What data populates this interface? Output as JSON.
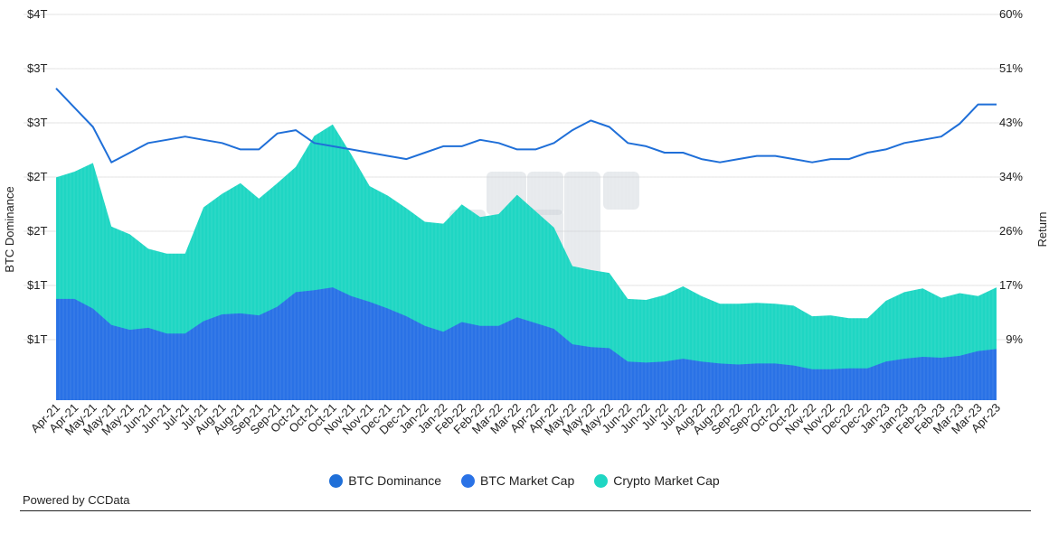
{
  "chart_data": {
    "type": "area",
    "title": "",
    "ylabel": "BTC Dominance",
    "y2label": "Return",
    "left_ticks": [
      "$4T",
      "$3T",
      "$3T",
      "$2T",
      "$2T",
      "$1T",
      "$1T"
    ],
    "right_ticks": [
      "60%",
      "51%",
      "43%",
      "34%",
      "26%",
      "17%",
      "9%"
    ],
    "categories": [
      "Apr-21",
      "Apr-21",
      "May-21",
      "May-21",
      "May-21",
      "Jun-21",
      "Jun-21",
      "Jul-21",
      "Jul-21",
      "Aug-21",
      "Aug-21",
      "Sep-21",
      "Sep-21",
      "Oct-21",
      "Oct-21",
      "Oct-21",
      "Nov-21",
      "Nov-21",
      "Dec-21",
      "Dec-21",
      "Jan-22",
      "Jan-22",
      "Feb-22",
      "Feb-22",
      "Mar-22",
      "Mar-22",
      "Apr-22",
      "Apr-22",
      "May-22",
      "May-22",
      "May-22",
      "Jun-22",
      "Jun-22",
      "Jul-22",
      "Jul-22",
      "Aug-22",
      "Aug-22",
      "Sep-22",
      "Sep-22",
      "Oct-22",
      "Oct-22",
      "Nov-22",
      "Nov-22",
      "Dec-22",
      "Dec-22",
      "Jan-23",
      "Jan-23",
      "Feb-23",
      "Feb-23",
      "Mar-23",
      "Mar-23",
      "Apr-23"
    ],
    "series": [
      {
        "name": "BTC Dominance",
        "color": "#1f6fd8",
        "axis": "right",
        "values": [
          48.5,
          45.5,
          42.5,
          37.0,
          38.5,
          40.0,
          40.5,
          41.0,
          40.5,
          40.0,
          39.0,
          39.0,
          41.5,
          42.0,
          40.0,
          39.5,
          39.0,
          38.5,
          38.0,
          37.5,
          38.5,
          39.5,
          39.5,
          40.5,
          40.0,
          39.0,
          39.0,
          40.0,
          42.0,
          43.5,
          42.5,
          40.0,
          39.5,
          38.5,
          38.5,
          37.5,
          37.0,
          37.5,
          38.0,
          38.0,
          37.5,
          37.0,
          37.5,
          37.5,
          38.5,
          39.0,
          40.0,
          40.5,
          41.0,
          43.0,
          46.0,
          46.0
        ]
      },
      {
        "name": "BTC Market Cap",
        "color": "#2a72e6",
        "axis": "left",
        "values": [
          1.05,
          1.05,
          0.95,
          0.78,
          0.73,
          0.75,
          0.69,
          0.69,
          0.82,
          0.89,
          0.9,
          0.88,
          0.97,
          1.12,
          1.14,
          1.17,
          1.08,
          1.02,
          0.95,
          0.87,
          0.77,
          0.71,
          0.81,
          0.77,
          0.77,
          0.86,
          0.8,
          0.74,
          0.58,
          0.55,
          0.54,
          0.4,
          0.39,
          0.4,
          0.43,
          0.4,
          0.38,
          0.37,
          0.38,
          0.38,
          0.36,
          0.32,
          0.32,
          0.33,
          0.33,
          0.4,
          0.43,
          0.45,
          0.44,
          0.46,
          0.51,
          0.53
        ]
      },
      {
        "name": "Crypto Market Cap",
        "color": "#1fd6c3",
        "axis": "left",
        "values": [
          2.31,
          2.37,
          2.46,
          1.8,
          1.72,
          1.57,
          1.52,
          1.52,
          2.0,
          2.14,
          2.25,
          2.09,
          2.25,
          2.42,
          2.74,
          2.86,
          2.55,
          2.22,
          2.12,
          1.99,
          1.85,
          1.83,
          2.03,
          1.9,
          1.93,
          2.13,
          1.96,
          1.79,
          1.39,
          1.35,
          1.32,
          1.05,
          1.04,
          1.09,
          1.18,
          1.08,
          1.0,
          1.0,
          1.01,
          1.0,
          0.98,
          0.87,
          0.88,
          0.85,
          0.85,
          1.03,
          1.12,
          1.16,
          1.06,
          1.11,
          1.08,
          1.17
        ]
      }
    ]
  },
  "legend": [
    {
      "label": "BTC Dominance",
      "color": "#1f6fd8"
    },
    {
      "label": "BTC Market Cap",
      "color": "#2a72e6"
    },
    {
      "label": "Crypto Market Cap",
      "color": "#1fd6c3"
    }
  ],
  "footer": {
    "text": "Powered by CCData"
  }
}
